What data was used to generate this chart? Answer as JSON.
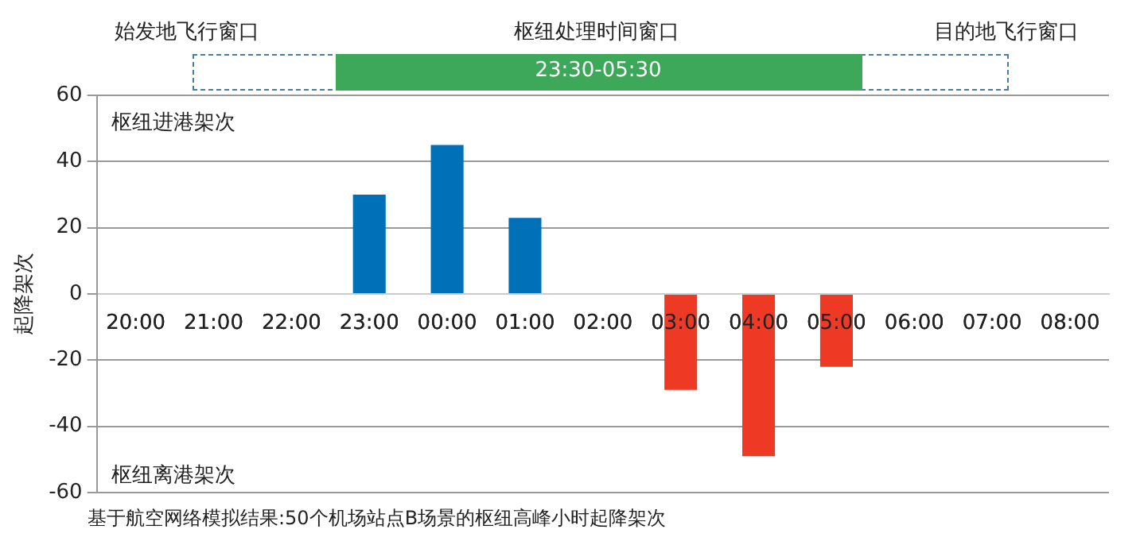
{
  "chart_data": {
    "type": "bar",
    "ylabel": "起降架次",
    "categories": [
      "20:00",
      "21:00",
      "22:00",
      "23:00",
      "00:00",
      "01:00",
      "02:00",
      "03:00",
      "04:00",
      "05:00",
      "06:00",
      "07:00",
      "08:00"
    ],
    "values": [
      null,
      null,
      null,
      30,
      45,
      23,
      null,
      -29,
      -49,
      -22,
      null,
      null,
      null
    ],
    "colors": [
      "#0070b8",
      "#0070b8",
      "#0070b8",
      "#0070b8",
      "#0070b8",
      "#0070b8",
      "#ee3a24",
      "#ee3a24",
      "#ee3a24",
      "#ee3a24",
      "#ee3a24",
      "#ee3a24",
      "#ee3a24"
    ],
    "ylim": [
      -60,
      60
    ],
    "yticks": [
      -60,
      -40,
      -20,
      0,
      20,
      40,
      60
    ],
    "grid": "y",
    "annotations": [
      "始发地飞行窗口",
      "枢纽处理时间窗口",
      "目的地飞行窗口",
      "23:30-05:30",
      "枢纽进港架次",
      "枢纽离港架次",
      "基于航空网络模拟结果:50个机场站点B场景的枢纽高峰小时起降架次"
    ]
  }
}
